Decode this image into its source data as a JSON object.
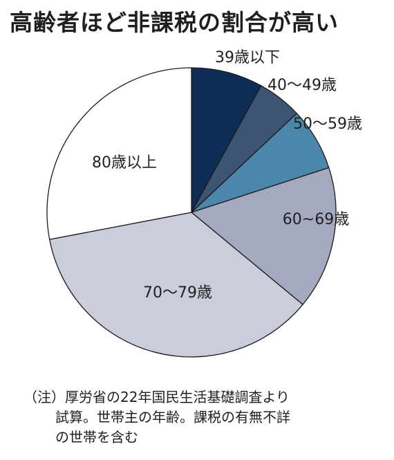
{
  "title": "高齢者ほど非課税の割合が高い",
  "chart_data": {
    "type": "pie",
    "title": "高齢者ほど非課税の割合が高い",
    "slices": [
      {
        "label": "39歳以下",
        "value": 8,
        "color": "#0e2d54"
      },
      {
        "label": "40～49歳",
        "value": 5,
        "color": "#3c5575"
      },
      {
        "label": "50～59歳",
        "value": 7,
        "color": "#4d86ab"
      },
      {
        "label": "60~69歳",
        "value": 16,
        "color": "#a5a9c0"
      },
      {
        "label": "70～79歳",
        "value": 36,
        "color": "#cbccdc"
      },
      {
        "label": "80歳以上",
        "value": 28,
        "color": "#ffffff"
      }
    ],
    "start_angle": "12 o'clock, clockwise"
  },
  "note": {
    "line1": "（注）厚労省の22年国民生活基礎調査より",
    "line2": "試算。世帯主の年齢。課税の有無不詳",
    "line3": "の世帯を含む"
  }
}
